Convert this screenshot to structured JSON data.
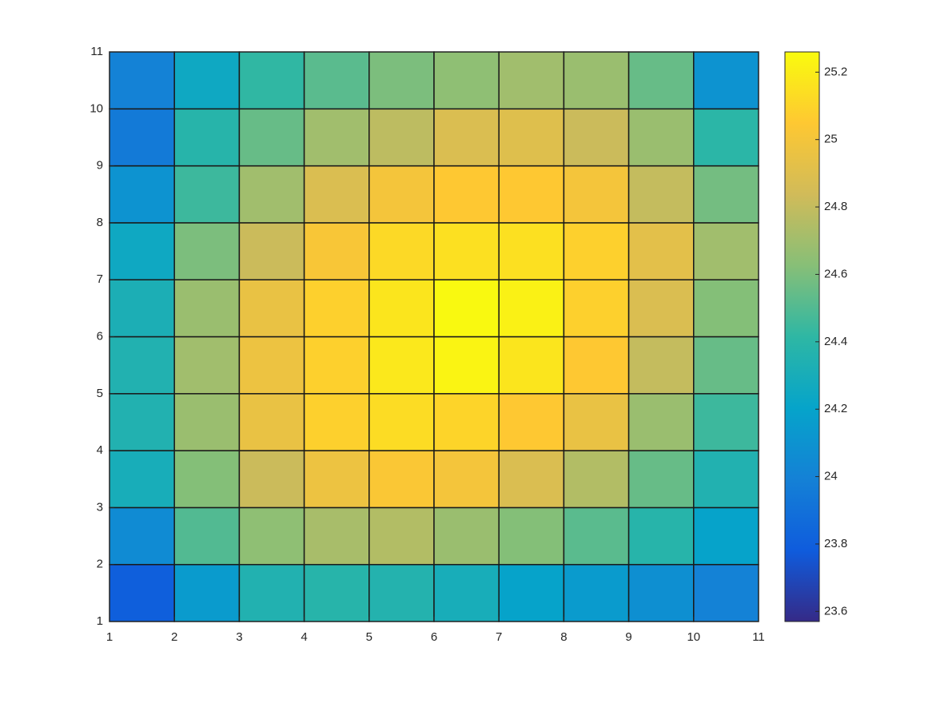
{
  "chart_data": {
    "type": "heatmap",
    "x": [
      1,
      2,
      3,
      4,
      5,
      6,
      7,
      8,
      9,
      10,
      11
    ],
    "y": [
      1,
      2,
      3,
      4,
      5,
      6,
      7,
      8,
      9,
      10,
      11
    ],
    "values": [
      [
        23.8,
        24.15,
        24.35,
        24.38,
        24.36,
        24.3,
        24.2,
        24.15,
        24.08,
        24.0
      ],
      [
        24.05,
        24.5,
        24.65,
        24.72,
        24.75,
        24.68,
        24.62,
        24.52,
        24.38,
        24.2
      ],
      [
        24.3,
        24.62,
        24.82,
        24.97,
        25.03,
        25.0,
        24.88,
        24.75,
        24.55,
        24.35
      ],
      [
        24.35,
        24.68,
        24.95,
        25.08,
        25.13,
        25.1,
        25.05,
        24.95,
        24.68,
        24.45
      ],
      [
        24.35,
        24.7,
        24.97,
        25.08,
        25.18,
        25.23,
        25.17,
        25.05,
        24.8,
        24.55
      ],
      [
        24.32,
        24.68,
        24.95,
        25.08,
        25.17,
        25.25,
        25.22,
        25.08,
        24.88,
        24.62
      ],
      [
        24.25,
        24.6,
        24.82,
        25.02,
        25.12,
        25.15,
        25.15,
        25.08,
        24.92,
        24.7
      ],
      [
        24.1,
        24.45,
        24.7,
        24.88,
        25.0,
        25.05,
        25.05,
        25.0,
        24.8,
        24.58
      ],
      [
        23.95,
        24.38,
        24.55,
        24.7,
        24.78,
        24.88,
        24.9,
        24.82,
        24.68,
        24.4
      ],
      [
        24.0,
        24.25,
        24.42,
        24.52,
        24.6,
        24.65,
        24.7,
        24.68,
        24.55,
        24.1
      ]
    ],
    "xlim": [
      1,
      11
    ],
    "ylim": [
      1,
      11
    ],
    "xticks": [
      1,
      2,
      3,
      4,
      5,
      6,
      7,
      8,
      9,
      10,
      11
    ],
    "yticks": [
      1,
      2,
      3,
      4,
      5,
      6,
      7,
      8,
      9,
      10,
      11
    ],
    "clim": [
      23.57,
      25.26
    ],
    "cticks": [
      23.6,
      23.8,
      24,
      24.2,
      24.4,
      24.6,
      24.8,
      25,
      25.2
    ],
    "colormap": [
      "#352a87",
      "#0f5cdd",
      "#1481d6",
      "#06a4ca",
      "#2eb7a4",
      "#87bf77",
      "#d1bb59",
      "#fec832",
      "#f9fb0e"
    ],
    "edgecolor": "#1a1a1a"
  }
}
